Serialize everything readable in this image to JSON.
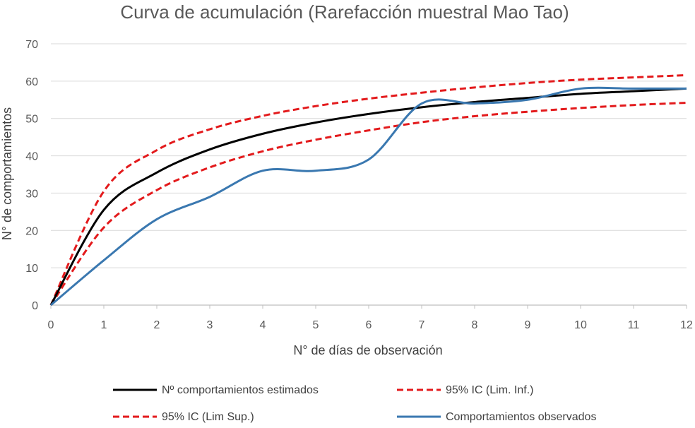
{
  "chart_data": {
    "type": "line",
    "title": "Curva de acumulación (Rarefacción muestral Mao Tao)",
    "xlabel": "N° de días de observación",
    "ylabel": "N° de comportamientos",
    "xlim": [
      0,
      12
    ],
    "ylim": [
      0,
      70
    ],
    "xticks": [
      0,
      1,
      2,
      3,
      4,
      5,
      6,
      7,
      8,
      9,
      10,
      11,
      12
    ],
    "yticks": [
      0,
      10,
      20,
      30,
      40,
      50,
      60,
      70
    ],
    "grid": "horizontal",
    "legend_position": "bottom",
    "series": [
      {
        "name": "Nº comportamientos estimados",
        "color": "#000000",
        "style": "solid",
        "x": [
          0,
          1,
          2,
          3,
          4,
          5,
          6,
          7,
          8,
          9,
          10,
          11,
          12
        ],
        "y": [
          0,
          25.5,
          35.5,
          41.7,
          45.9,
          48.9,
          51.2,
          53,
          54.4,
          55.5,
          56.6,
          57.3,
          58
        ]
      },
      {
        "name": "95% IC (Lim. Inf.)",
        "color": "#e31a1c",
        "style": "dashed",
        "x": [
          0,
          1,
          2,
          3,
          4,
          5,
          6,
          7,
          8,
          9,
          10,
          11,
          12
        ],
        "y": [
          0,
          20.8,
          30.8,
          36.9,
          41.2,
          44.3,
          46.8,
          49,
          50.6,
          51.8,
          52.8,
          53.6,
          54.2
        ]
      },
      {
        "name": "95% IC (Lim Sup.)",
        "color": "#e31a1c",
        "style": "dashed",
        "x": [
          0,
          1,
          2,
          3,
          4,
          5,
          6,
          7,
          8,
          9,
          10,
          11,
          12
        ],
        "y": [
          0,
          30.5,
          41.5,
          47.1,
          50.7,
          53.3,
          55.3,
          56.9,
          58.3,
          59.5,
          60.4,
          61,
          61.6
        ]
      },
      {
        "name": "Comportamientos observados",
        "color": "#3a78b0",
        "style": "solid",
        "x": [
          0,
          1,
          2,
          3,
          4,
          5,
          6,
          7,
          8,
          9,
          10,
          11,
          12
        ],
        "y": [
          0,
          12,
          23,
          29,
          36,
          36,
          39,
          54,
          54,
          55,
          58,
          58,
          58
        ]
      }
    ]
  }
}
